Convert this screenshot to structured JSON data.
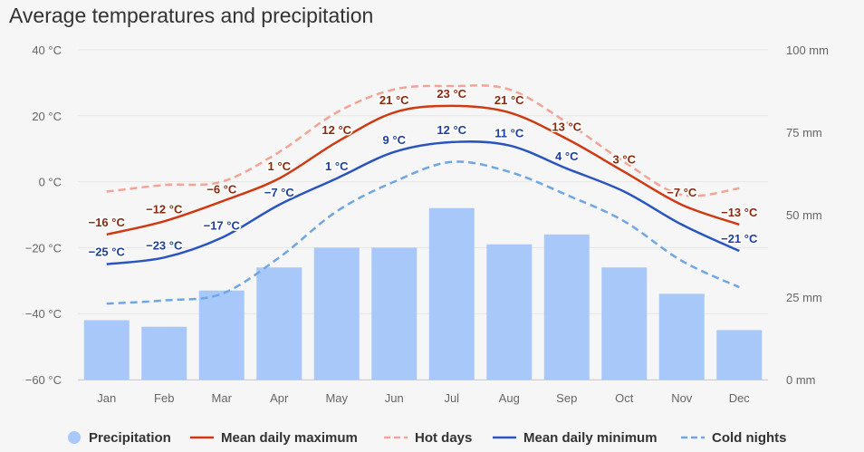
{
  "title": "Average temperatures and precipitation",
  "chart_data": {
    "type": "line+bar",
    "title": "Average temperatures and precipitation",
    "categories": [
      "Jan",
      "Feb",
      "Mar",
      "Apr",
      "May",
      "Jun",
      "Jul",
      "Aug",
      "Sep",
      "Oct",
      "Nov",
      "Dec"
    ],
    "y_left": {
      "unit": "°C",
      "range": [
        -60,
        40
      ],
      "ticks": [
        40,
        20,
        0,
        -20,
        -40,
        -60
      ],
      "tick_labels": [
        "40 °C",
        "20 °C",
        "0 °C",
        "−20 °C",
        "−40 °C",
        "−60 °C"
      ]
    },
    "y_right": {
      "unit": "mm",
      "range": [
        0,
        100
      ],
      "ticks": [
        100,
        75,
        50,
        25,
        0
      ],
      "tick_labels": [
        "100 mm",
        "75 mm",
        "50 mm",
        "25 mm",
        "0 mm"
      ]
    },
    "grid": true,
    "legend_position": "bottom",
    "series": [
      {
        "key": "precipitation",
        "name": "Precipitation",
        "kind": "bar",
        "axis": "right",
        "color": "#a9c8fa",
        "values": [
          18,
          16,
          27,
          34,
          40,
          40,
          52,
          41,
          44,
          34,
          26,
          15
        ]
      },
      {
        "key": "mean_max",
        "name": "Mean daily maximum",
        "kind": "line",
        "axis": "left",
        "color": "#d03a12",
        "dash": false,
        "values": [
          -16,
          -12,
          -6,
          1,
          12,
          21,
          23,
          21,
          13,
          3,
          -7,
          -13
        ],
        "labels": [
          "−16 °C",
          "−12 °C",
          "−6 °C",
          "1 °C",
          "12 °C",
          "21 °C",
          "23 °C",
          "21 °C",
          "13 °C",
          "3 °C",
          "−7 °C",
          "−13 °C"
        ]
      },
      {
        "key": "hot_days",
        "name": "Hot days",
        "kind": "line",
        "axis": "left",
        "color": "#f4a394",
        "dash": true,
        "values": [
          -3,
          -1,
          0,
          9,
          21,
          28,
          29,
          28,
          18,
          6,
          -4,
          -2
        ]
      },
      {
        "key": "mean_min",
        "name": "Mean daily minimum",
        "kind": "line",
        "axis": "left",
        "color": "#2a55c0",
        "dash": false,
        "values": [
          -25,
          -23,
          -17,
          -7,
          1,
          9,
          12,
          11,
          4,
          -3,
          -13,
          -21
        ],
        "labels": [
          "−25 °C",
          "−23 °C",
          "−17 °C",
          "−7 °C",
          "1 °C",
          "9 °C",
          "12 °C",
          "11 °C",
          "4 °C",
          "",
          "",
          "−21 °C"
        ]
      },
      {
        "key": "cold_nights",
        "name": "Cold nights",
        "kind": "line",
        "axis": "left",
        "color": "#6fa6e4",
        "dash": true,
        "values": [
          -37,
          -36,
          -34,
          -23,
          -9,
          0,
          6,
          3,
          -4,
          -12,
          -24,
          -32
        ]
      }
    ]
  },
  "legend": [
    {
      "name": "Precipitation",
      "color": "#a9c8fa",
      "type": "dot"
    },
    {
      "name": "Mean daily maximum",
      "color": "#d03a12",
      "type": "line"
    },
    {
      "name": "Hot days",
      "color": "#f4a394",
      "type": "dash"
    },
    {
      "name": "Mean daily minimum",
      "color": "#2a55c0",
      "type": "line"
    },
    {
      "name": "Cold nights",
      "color": "#6fa6e4",
      "type": "dash"
    }
  ]
}
